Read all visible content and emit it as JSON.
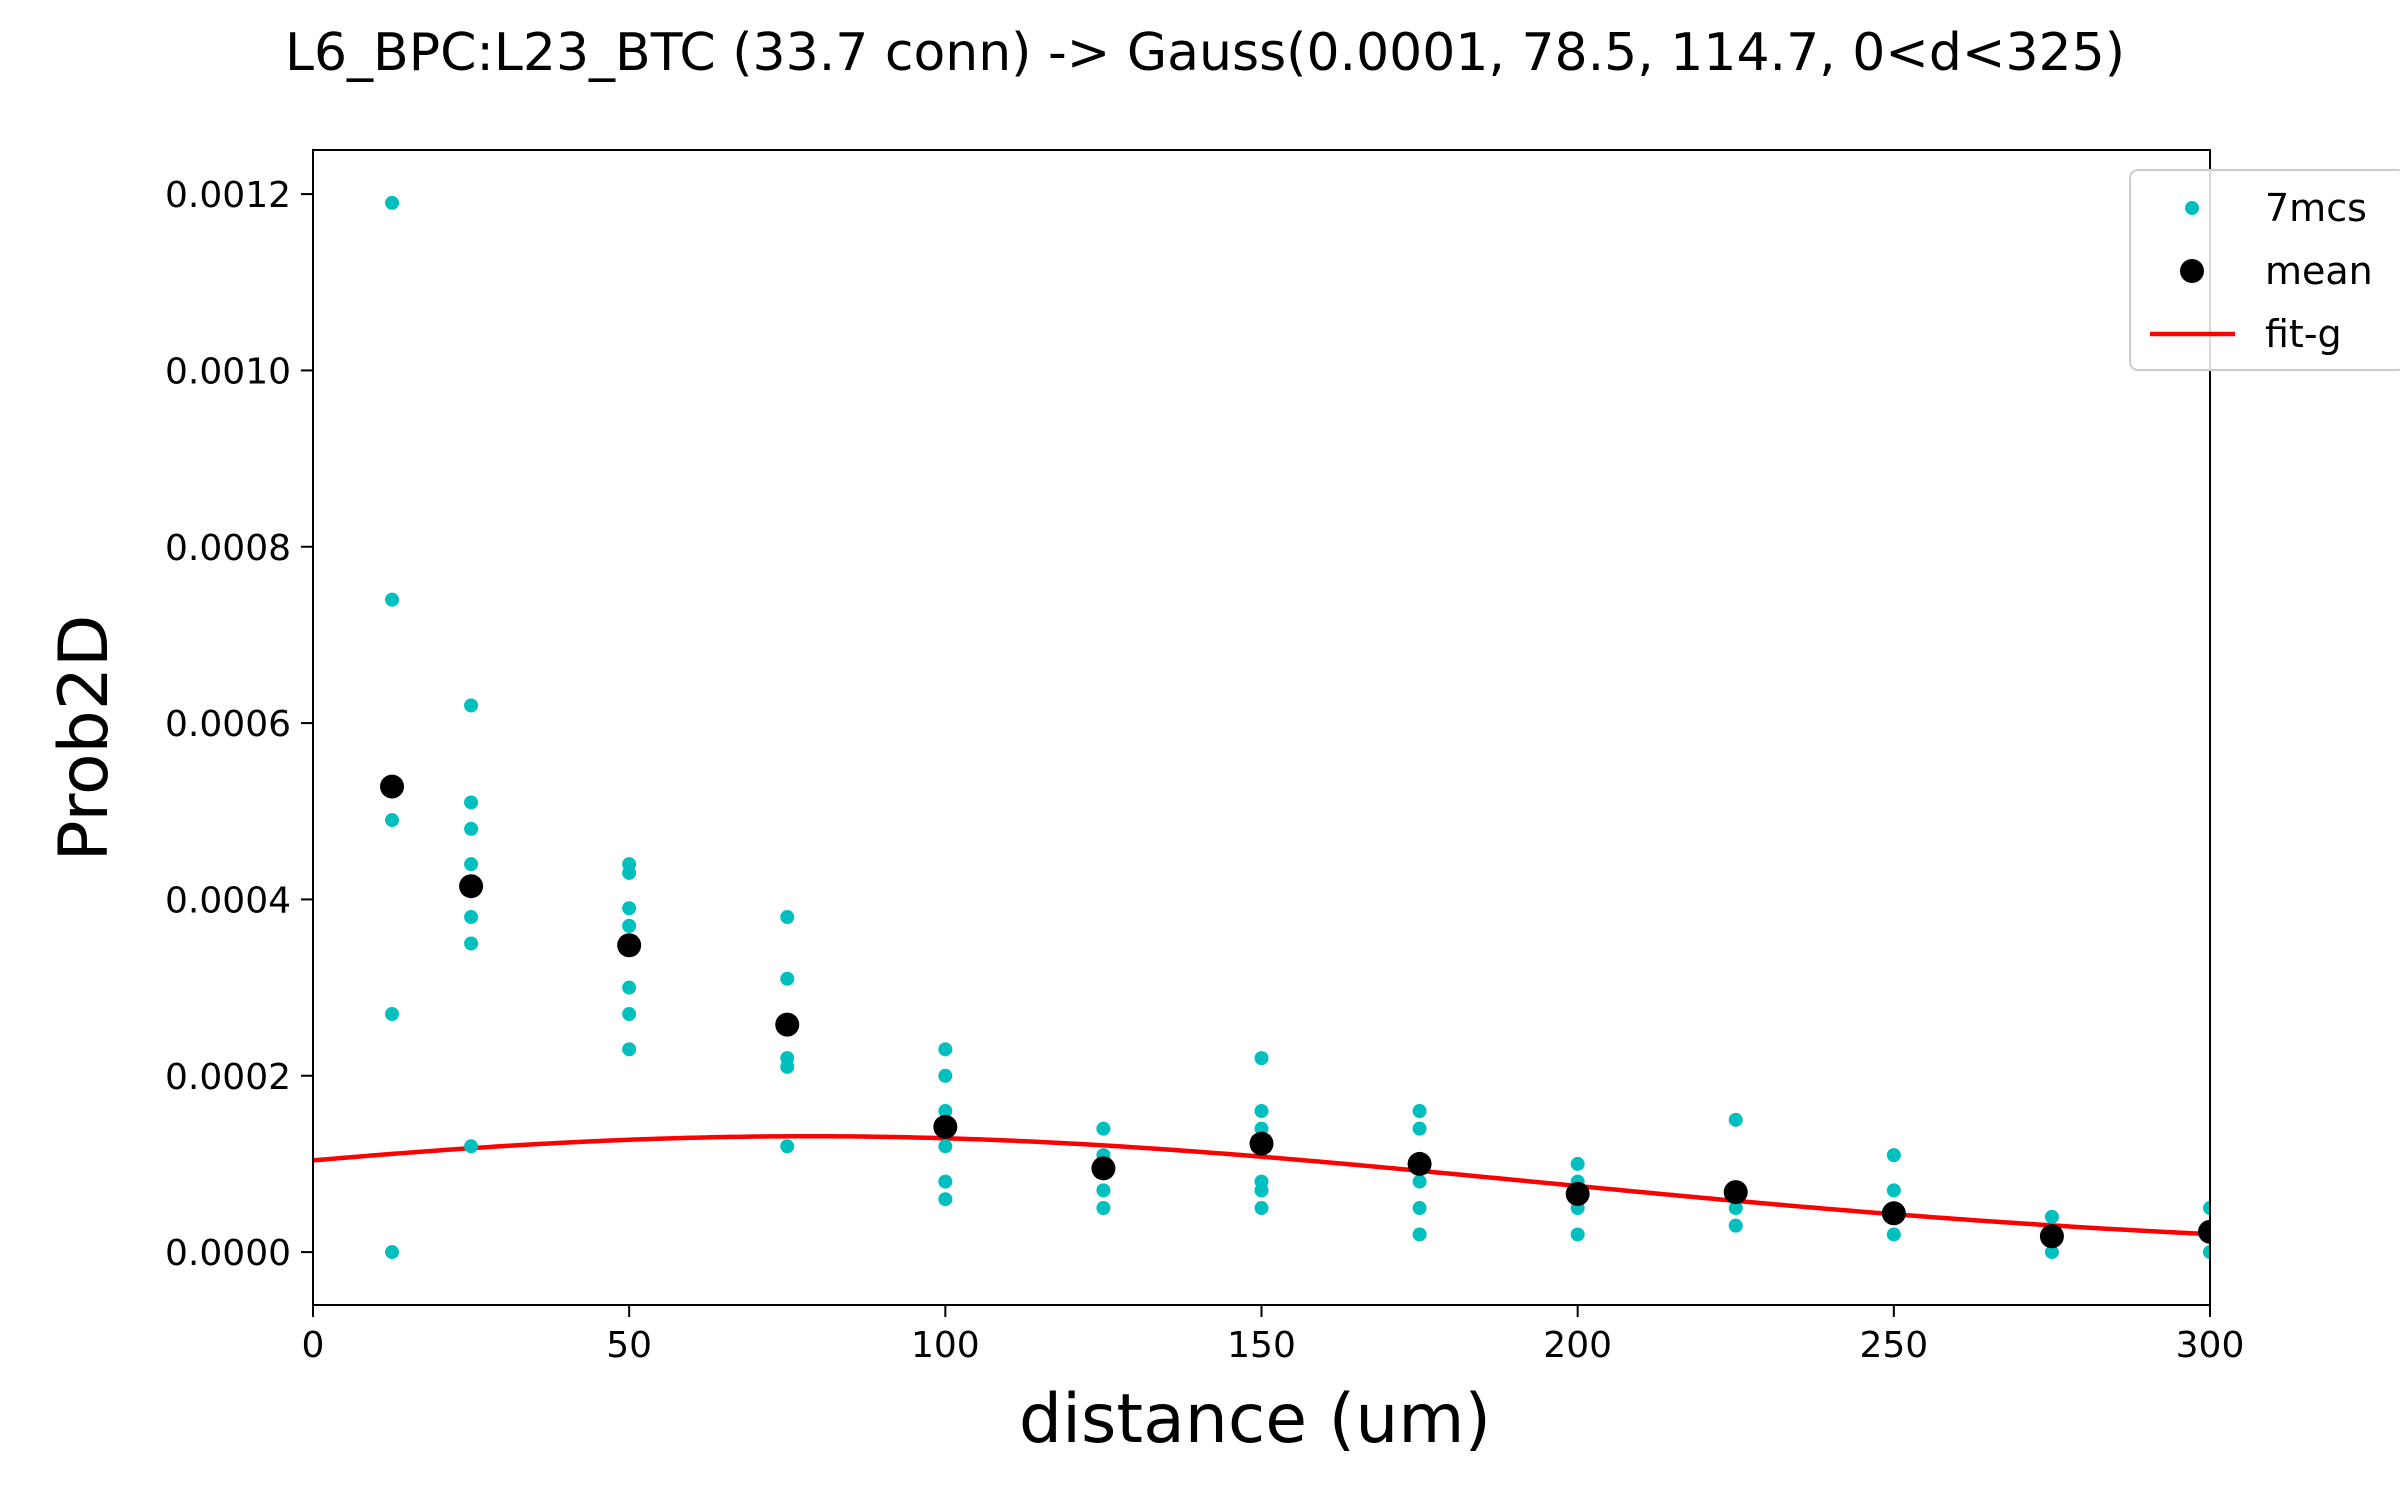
{
  "chart_data": {
    "type": "scatter",
    "title": "L6_BPC:L23_BTC (33.7 conn) -> Gauss(0.0001, 78.5, 114.7, 0<d<325)",
    "xlabel": "distance (um)",
    "ylabel": "Prob2D",
    "xlim": [
      0,
      300
    ],
    "ylim": [
      -6e-05,
      0.00125
    ],
    "xticks": [
      0,
      50,
      100,
      150,
      200,
      250,
      300
    ],
    "xtick_labels": [
      "0",
      "50",
      "100",
      "150",
      "200",
      "250",
      "300"
    ],
    "yticks": [
      0.0,
      0.0002,
      0.0004,
      0.0006,
      0.0008,
      0.001,
      0.0012
    ],
    "ytick_labels": [
      "0.0000",
      "0.0002",
      "0.0004",
      "0.0006",
      "0.0008",
      "0.0010",
      "0.0012"
    ],
    "grid": false,
    "legend_position": "top-right",
    "series": [
      {
        "name": "7mcs",
        "kind": "points",
        "color": "#00bfbf",
        "points": [
          [
            12.5,
            0.00119
          ],
          [
            12.5,
            0.00074
          ],
          [
            12.5,
            0.00049
          ],
          [
            12.5,
            0.00027
          ],
          [
            12.5,
            0.0
          ],
          [
            25,
            0.00062
          ],
          [
            25,
            0.00051
          ],
          [
            25,
            0.00048
          ],
          [
            25,
            0.00044
          ],
          [
            25,
            0.00041
          ],
          [
            25,
            0.00038
          ],
          [
            25,
            0.00035
          ],
          [
            25,
            0.00012
          ],
          [
            50,
            0.00044
          ],
          [
            50,
            0.00043
          ],
          [
            50,
            0.00039
          ],
          [
            50,
            0.00037
          ],
          [
            50,
            0.00035
          ],
          [
            50,
            0.0003
          ],
          [
            50,
            0.00027
          ],
          [
            50,
            0.00023
          ],
          [
            75,
            0.00038
          ],
          [
            75,
            0.00031
          ],
          [
            75,
            0.00026
          ],
          [
            75,
            0.00022
          ],
          [
            75,
            0.00021
          ],
          [
            75,
            0.00012
          ],
          [
            100,
            0.00023
          ],
          [
            100,
            0.0002
          ],
          [
            100,
            0.00016
          ],
          [
            100,
            0.00014
          ],
          [
            100,
            0.00012
          ],
          [
            100,
            8e-05
          ],
          [
            100,
            6e-05
          ],
          [
            125,
            0.00014
          ],
          [
            125,
            0.00011
          ],
          [
            125,
            9e-05
          ],
          [
            125,
            7e-05
          ],
          [
            125,
            5e-05
          ],
          [
            150,
            0.00022
          ],
          [
            150,
            0.00016
          ],
          [
            150,
            0.00014
          ],
          [
            150,
            0.00012
          ],
          [
            150,
            8e-05
          ],
          [
            150,
            7e-05
          ],
          [
            150,
            5e-05
          ],
          [
            175,
            0.00016
          ],
          [
            175,
            0.00014
          ],
          [
            175,
            0.0001
          ],
          [
            175,
            8e-05
          ],
          [
            175,
            5e-05
          ],
          [
            175,
            2e-05
          ],
          [
            200,
            0.0001
          ],
          [
            200,
            8e-05
          ],
          [
            200,
            7e-05
          ],
          [
            200,
            5e-05
          ],
          [
            200,
            2e-05
          ],
          [
            225,
            0.00015
          ],
          [
            225,
            7e-05
          ],
          [
            225,
            5e-05
          ],
          [
            225,
            3e-05
          ],
          [
            250,
            0.00011
          ],
          [
            250,
            7e-05
          ],
          [
            250,
            4e-05
          ],
          [
            250,
            2e-05
          ],
          [
            275,
            4e-05
          ],
          [
            275,
            2e-05
          ],
          [
            275,
            0.0
          ],
          [
            300,
            5e-05
          ],
          [
            300,
            2e-05
          ],
          [
            300,
            0.0
          ]
        ]
      },
      {
        "name": "mean",
        "kind": "points",
        "color": "#000000",
        "points": [
          [
            12.5,
            0.000528
          ],
          [
            25,
            0.000415
          ],
          [
            50,
            0.000348
          ],
          [
            75,
            0.000258
          ],
          [
            100,
            0.000142
          ],
          [
            125,
            9.5e-05
          ],
          [
            150,
            0.000123
          ],
          [
            175,
            0.0001
          ],
          [
            200,
            6.6e-05
          ],
          [
            225,
            6.8e-05
          ],
          [
            250,
            4.4e-05
          ],
          [
            275,
            1.8e-05
          ],
          [
            300,
            2.3e-05
          ]
        ]
      },
      {
        "name": "fit-g",
        "kind": "line",
        "color": "#ff0000",
        "function": "gaussian",
        "params": {
          "amplitude": 0.0001314,
          "mu": 78.5,
          "sigma": 114.7
        }
      }
    ]
  }
}
